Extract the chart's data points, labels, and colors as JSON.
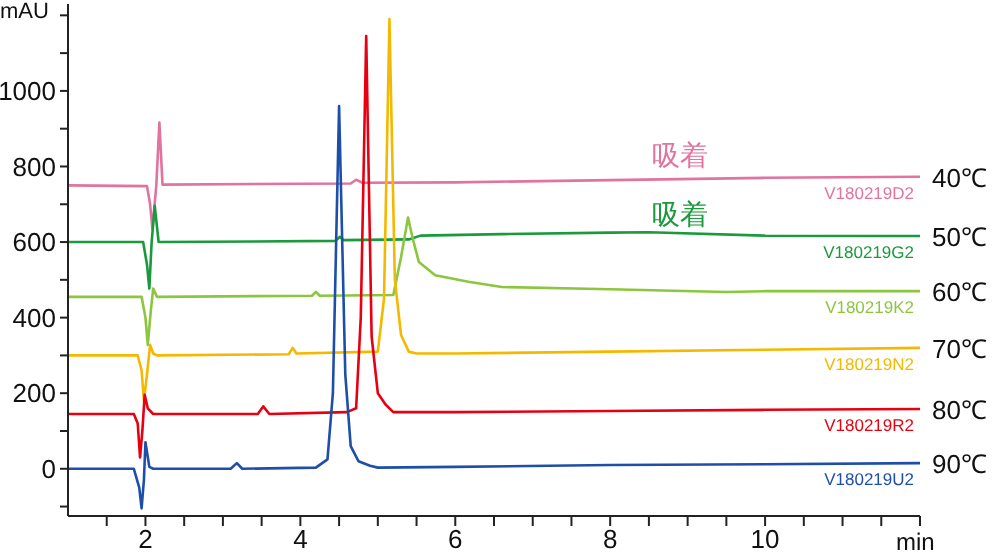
{
  "chart_data": {
    "type": "line",
    "xlabel": "min",
    "ylabel": "mAU",
    "xlim": [
      1,
      12
    ],
    "ylim": [
      -125,
      1230
    ],
    "xticks": [
      {
        "value": 1.5,
        "label": null
      },
      2,
      {
        "value": 2.5,
        "label": null
      },
      {
        "value": 3,
        "label": null
      },
      {
        "value": 3.5,
        "label": null
      },
      4,
      {
        "value": 4.5,
        "label": null
      },
      {
        "value": 5,
        "label": null
      },
      {
        "value": 5.5,
        "label": null
      },
      6,
      {
        "value": 6.5,
        "label": null
      },
      {
        "value": 7,
        "label": null
      },
      {
        "value": 7.5,
        "label": null
      },
      8,
      {
        "value": 8.5,
        "label": null
      },
      {
        "value": 9,
        "label": null
      },
      {
        "value": 9.5,
        "label": null
      },
      10,
      {
        "value": 10.5,
        "label": null
      },
      {
        "value": 11,
        "label": null
      },
      {
        "value": 11.5,
        "label": null
      },
      {
        "value": 12,
        "label": null
      }
    ],
    "yticks": [
      {
        "value": -100,
        "label": null
      },
      0,
      {
        "value": 100,
        "label": null
      },
      200,
      {
        "value": 300,
        "label": null
      },
      400,
      {
        "value": 500,
        "label": null
      },
      600,
      {
        "value": 700,
        "label": null
      },
      800,
      {
        "value": 900,
        "label": null
      },
      1000,
      {
        "value": 1100,
        "label": null
      },
      {
        "value": 1200,
        "label": null
      }
    ],
    "series": [
      {
        "name": "40℃",
        "color": "#e0739f",
        "x": [
          1,
          2.02,
          2.06,
          2.09,
          2.14,
          2.18,
          2.22,
          4.65,
          4.72,
          4.8,
          6,
          8,
          10,
          12
        ],
        "values": [
          750,
          748,
          700,
          635,
          750,
          916,
          752,
          755,
          765,
          757,
          758,
          764,
          770,
          773
        ]
      },
      {
        "name": "50℃",
        "color": "#1a9a3c",
        "x": [
          1,
          1.97,
          2.02,
          2.05,
          2.08,
          2.12,
          2.17,
          4.45,
          4.51,
          4.56,
          5.4,
          5.55,
          6.6,
          8,
          8.5,
          10,
          12
        ],
        "values": [
          600,
          600,
          540,
          477,
          600,
          696,
          600,
          603,
          614,
          605,
          607,
          617,
          621,
          625,
          626,
          617,
          616
        ]
      },
      {
        "name": "60℃",
        "color": "#8cc63f",
        "x": [
          1,
          1.95,
          2.0,
          2.03,
          2.07,
          2.1,
          2.15,
          4.15,
          4.2,
          4.25,
          5.2,
          5.3,
          5.39,
          5.45,
          5.53,
          5.74,
          6.17,
          6.6,
          8,
          9.5,
          10,
          12
        ],
        "values": [
          455,
          455,
          400,
          328,
          420,
          477,
          455,
          458,
          468,
          458,
          460,
          560,
          665,
          610,
          547,
          512,
          495,
          481,
          475,
          468,
          470,
          470
        ]
      },
      {
        "name": "70℃",
        "color": "#f5b800",
        "x": [
          1,
          1.9,
          1.95,
          1.98,
          2.02,
          2.06,
          2.1,
          2.15,
          3.85,
          3.9,
          3.95,
          5.0,
          5.08,
          5.15,
          5.22,
          5.3,
          5.4,
          5.5,
          6,
          8,
          10,
          12
        ],
        "values": [
          300,
          300,
          260,
          180,
          250,
          328,
          305,
          300,
          303,
          320,
          305,
          310,
          450,
          1190,
          500,
          354,
          310,
          305,
          305,
          310,
          315,
          320
        ]
      },
      {
        "name": "80℃",
        "color": "#e60012",
        "x": [
          1,
          1.85,
          1.9,
          1.93,
          1.96,
          1.99,
          2.03,
          2.1,
          3.45,
          3.52,
          3.6,
          4.6,
          4.72,
          4.78,
          4.85,
          4.92,
          5.0,
          5.1,
          5.2,
          6,
          8,
          10,
          12
        ],
        "values": [
          145,
          145,
          120,
          30,
          100,
          196,
          160,
          145,
          145,
          165,
          145,
          150,
          160,
          400,
          1145,
          350,
          200,
          170,
          150,
          150,
          153,
          156,
          158
        ]
      },
      {
        "name": "90℃",
        "color": "#1e4fa8",
        "x": [
          1,
          1.85,
          1.92,
          1.95,
          1.98,
          2.0,
          2.05,
          2.1,
          3.1,
          3.18,
          3.25,
          4.2,
          4.35,
          4.42,
          4.5,
          4.58,
          4.65,
          4.75,
          4.9,
          5.0,
          6,
          8,
          10,
          12
        ],
        "values": [
          0,
          0,
          -50,
          -105,
          -30,
          70,
          5,
          0,
          0,
          15,
          0,
          3,
          25,
          200,
          960,
          250,
          60,
          20,
          8,
          3,
          5,
          10,
          12,
          15
        ]
      }
    ],
    "annotations": [
      "吸着",
      "吸着",
      "V180219D2",
      "V180219G2",
      "V180219K2",
      "V180219N2",
      "V180219R2",
      "V180219U2"
    ]
  }
}
